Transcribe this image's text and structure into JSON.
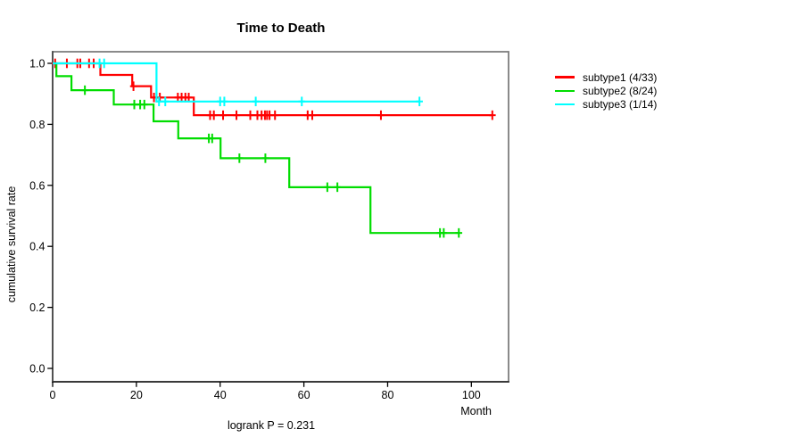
{
  "chart_data": {
    "type": "line",
    "subtype": "kaplan-meier-step-curves",
    "title": "Time to Death",
    "xlabel": "Month",
    "ylabel": "cumulative survival rate",
    "footnote": "logrank P = 0.231",
    "xlim": [
      0,
      100
    ],
    "ylim": [
      0.0,
      1.0
    ],
    "x_ticks": [
      0,
      20,
      40,
      60,
      80,
      100
    ],
    "y_ticks": [
      "0.0",
      "0.2",
      "0.4",
      "0.6",
      "0.8",
      "1.0"
    ],
    "grid": false,
    "legend_position": "right-outside",
    "series": [
      {
        "name": "subtype1",
        "legend": "subtype1 (4/33)",
        "events": "4/33",
        "color": "#ff0000",
        "drops": [
          [
            0,
            1.0
          ],
          [
            11.4,
            0.962
          ],
          [
            19.0,
            0.925
          ],
          [
            23.5,
            0.888
          ],
          [
            33.7,
            0.83
          ]
        ],
        "end_time": 105,
        "final_survival": 0.83,
        "censor_marks": [
          [
            0.6,
            1.0
          ],
          [
            3.4,
            1.0
          ],
          [
            5.9,
            1.0
          ],
          [
            6.6,
            1.0
          ],
          [
            8.7,
            1.0
          ],
          [
            9.8,
            1.0
          ],
          [
            19.3,
            0.925
          ],
          [
            24.2,
            0.888
          ],
          [
            25.6,
            0.888
          ],
          [
            29.9,
            0.888
          ],
          [
            30.8,
            0.888
          ],
          [
            31.7,
            0.888
          ],
          [
            32.5,
            0.888
          ],
          [
            37.6,
            0.83
          ],
          [
            38.5,
            0.83
          ],
          [
            40.7,
            0.83
          ],
          [
            43.9,
            0.83
          ],
          [
            47.2,
            0.83
          ],
          [
            48.9,
            0.83
          ],
          [
            49.9,
            0.83
          ],
          [
            50.7,
            0.83
          ],
          [
            51.2,
            0.83
          ],
          [
            51.8,
            0.83
          ],
          [
            53.1,
            0.83
          ],
          [
            60.9,
            0.83
          ],
          [
            62.0,
            0.83
          ],
          [
            78.4,
            0.83
          ],
          [
            105,
            0.83
          ]
        ]
      },
      {
        "name": "subtype2",
        "legend": "subtype2 (8/24)",
        "events": "8/24",
        "color": "#00dd00",
        "drops": [
          [
            0,
            1.0
          ],
          [
            0.9,
            0.958
          ],
          [
            4.5,
            0.912
          ],
          [
            14.6,
            0.865
          ],
          [
            24.1,
            0.81
          ],
          [
            30.0,
            0.754
          ],
          [
            40.1,
            0.689
          ],
          [
            56.5,
            0.594
          ],
          [
            75.9,
            0.444
          ]
        ],
        "end_time": 97,
        "final_survival": 0.44,
        "censor_marks": [
          [
            7.7,
            0.912
          ],
          [
            19.5,
            0.865
          ],
          [
            20.9,
            0.865
          ],
          [
            21.9,
            0.865
          ],
          [
            37.3,
            0.754
          ],
          [
            38.1,
            0.754
          ],
          [
            44.6,
            0.689
          ],
          [
            50.8,
            0.689
          ],
          [
            65.6,
            0.594
          ],
          [
            68.0,
            0.594
          ],
          [
            92.5,
            0.444
          ],
          [
            93.4,
            0.444
          ],
          [
            97,
            0.444
          ]
        ]
      },
      {
        "name": "subtype3",
        "legend": "subtype3 (1/14)",
        "events": "1/14",
        "color": "#00ffff",
        "drops": [
          [
            0,
            1.0
          ],
          [
            24.8,
            0.875
          ]
        ],
        "end_time": 87.6,
        "final_survival": 0.875,
        "censor_marks": [
          [
            11.2,
            1.0
          ],
          [
            12.3,
            1.0
          ],
          [
            25.4,
            0.875
          ],
          [
            26.9,
            0.875
          ],
          [
            40.0,
            0.875
          ],
          [
            41.0,
            0.875
          ],
          [
            48.5,
            0.875
          ],
          [
            59.5,
            0.875
          ],
          [
            87.6,
            0.875
          ]
        ]
      }
    ]
  }
}
